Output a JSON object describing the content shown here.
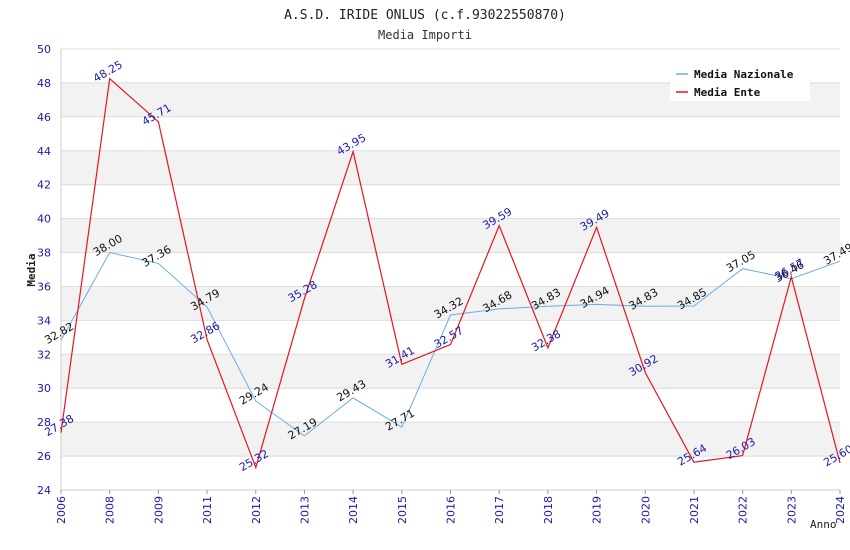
{
  "chart_data": {
    "type": "line",
    "title": "A.S.D. IRIDE ONLUS (c.f.93022550870)",
    "subtitle": "Media Importi",
    "xlabel": "Anno",
    "ylabel": "Media",
    "ylim": [
      24,
      50
    ],
    "yticks": [
      24,
      26,
      28,
      30,
      32,
      34,
      36,
      38,
      40,
      42,
      44,
      46,
      48,
      50
    ],
    "grid": true,
    "legend_position": "top-right",
    "categories": [
      "2006",
      "2008",
      "2009",
      "2011",
      "2012",
      "2013",
      "2014",
      "2015",
      "2016",
      "2017",
      "2018",
      "2019",
      "2020",
      "2021",
      "2022",
      "2023",
      "2024"
    ],
    "series": [
      {
        "name": "Media Nazionale",
        "color": "#6aaee6",
        "label_color": "#111111",
        "values": [
          32.82,
          38.0,
          37.36,
          34.79,
          29.24,
          27.19,
          29.43,
          27.71,
          34.32,
          34.68,
          34.83,
          34.94,
          34.83,
          34.85,
          37.05,
          36.46,
          37.49
        ],
        "labels": [
          "32.82",
          "38.00",
          "37.36",
          "34.79",
          "29.24",
          "27.19",
          "29.43",
          "27.71",
          "34.32",
          "34.68",
          "34.83",
          "34.94",
          "34.83",
          "34.85",
          "37.05",
          "36.46",
          "37.49"
        ]
      },
      {
        "name": "Media Ente",
        "color": "#e8141e",
        "label_color": "#1a1aa6",
        "values": [
          27.38,
          48.25,
          45.71,
          32.86,
          25.32,
          35.28,
          43.95,
          31.41,
          32.57,
          39.59,
          32.38,
          39.49,
          30.92,
          25.64,
          26.03,
          36.57,
          25.6
        ],
        "labels": [
          "27.38",
          "48.25",
          "45.71",
          "32.86",
          "25.32",
          "35.28",
          "43.95",
          "31.41",
          "32.57",
          "39.59",
          "32.38",
          "39.49",
          "30.92",
          "25.64",
          "26.03",
          "36.57",
          "25.60"
        ]
      }
    ]
  }
}
